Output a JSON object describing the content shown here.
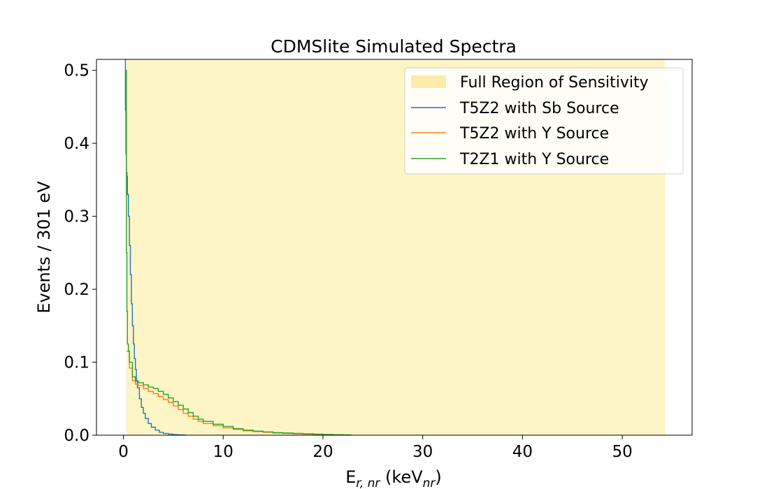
{
  "chart_data": {
    "type": "line",
    "title": "CDMSlite Simulated Spectra",
    "xlabel": {
      "main": "E",
      "sub": "r, nr",
      "unit_open": " (keV",
      "unit_sub": "nr",
      "unit_close": ")"
    },
    "ylabel": "Events / 301 eV",
    "xlim": [
      -2.7,
      57.0
    ],
    "ylim": [
      0.0,
      0.515
    ],
    "x_ticks": [
      0,
      10,
      20,
      30,
      40,
      50
    ],
    "x_tick_labels": [
      "0",
      "10",
      "20",
      "30",
      "40",
      "50"
    ],
    "y_ticks": [
      0.0,
      0.1,
      0.2,
      0.3,
      0.4,
      0.5
    ],
    "y_tick_labels": [
      "0.0",
      "0.1",
      "0.2",
      "0.3",
      "0.4",
      "0.5"
    ],
    "grid": false,
    "legend_position": "top-right",
    "region": {
      "name": "Full Region of Sensitivity",
      "x_start": 0.3,
      "x_end": 54.3,
      "color": "#fdf5c6",
      "legend_color": "#fcecaa"
    },
    "series": [
      {
        "name": "T5Z2 with Sb Source",
        "color": "#1f77b4",
        "x": [
          0.15,
          0.2,
          0.25,
          0.3,
          0.35,
          0.4,
          0.5,
          0.6,
          0.7,
          0.8,
          0.9,
          1.0,
          1.1,
          1.2,
          1.3,
          1.4,
          1.6,
          1.8,
          2.0,
          2.2,
          2.5,
          2.8,
          3.2,
          3.6,
          4.0,
          4.5,
          5.0,
          5.5,
          6.0,
          6.3
        ],
        "y": [
          0.52,
          0.445,
          0.385,
          0.36,
          0.355,
          0.33,
          0.3,
          0.26,
          0.22,
          0.18,
          0.15,
          0.125,
          0.105,
          0.09,
          0.075,
          0.065,
          0.05,
          0.038,
          0.03,
          0.023,
          0.016,
          0.011,
          0.007,
          0.004,
          0.0025,
          0.0015,
          0.0008,
          0.0004,
          0.0002,
          0.0
        ]
      },
      {
        "name": "T5Z2 with Y Source",
        "color": "#ff7f0e",
        "x": [
          0.3,
          0.6,
          0.9,
          1.2,
          1.5,
          2.0,
          2.5,
          3.0,
          3.5,
          4.0,
          4.5,
          5.0,
          5.5,
          6.0,
          6.5,
          7.0,
          7.5,
          8.0,
          9.0,
          10.0,
          11.0,
          12.0,
          13.0,
          14.0,
          15.0,
          16.0,
          17.0,
          18.0,
          19.0,
          20.0,
          21.0,
          22.0,
          22.5
        ],
        "y": [
          0.115,
          0.092,
          0.075,
          0.07,
          0.068,
          0.064,
          0.06,
          0.057,
          0.053,
          0.049,
          0.045,
          0.04,
          0.035,
          0.03,
          0.026,
          0.022,
          0.019,
          0.016,
          0.013,
          0.01,
          0.008,
          0.006,
          0.005,
          0.004,
          0.003,
          0.0025,
          0.002,
          0.0015,
          0.001,
          0.0008,
          0.0005,
          0.0003,
          0.0
        ]
      },
      {
        "name": "T2Z1 with Y Source",
        "color": "#2ca02c",
        "x": [
          0.25,
          0.3,
          0.35,
          0.4,
          0.5,
          0.6,
          0.9,
          1.2,
          1.5,
          2.0,
          2.5,
          3.0,
          3.5,
          4.0,
          4.5,
          5.0,
          5.5,
          6.0,
          6.5,
          7.0,
          7.5,
          8.0,
          9.0,
          10.0,
          11.0,
          12.0,
          13.0,
          14.0,
          15.0,
          16.0,
          17.0,
          18.0,
          19.0,
          20.0,
          21.0,
          22.0,
          22.8
        ],
        "y": [
          0.5,
          0.25,
          0.17,
          0.125,
          0.115,
          0.1,
          0.08,
          0.074,
          0.072,
          0.069,
          0.066,
          0.064,
          0.06,
          0.056,
          0.051,
          0.046,
          0.041,
          0.036,
          0.031,
          0.026,
          0.022,
          0.019,
          0.015,
          0.012,
          0.009,
          0.007,
          0.0055,
          0.0045,
          0.0035,
          0.003,
          0.0025,
          0.002,
          0.0015,
          0.001,
          0.0007,
          0.0004,
          0.0
        ]
      }
    ]
  }
}
